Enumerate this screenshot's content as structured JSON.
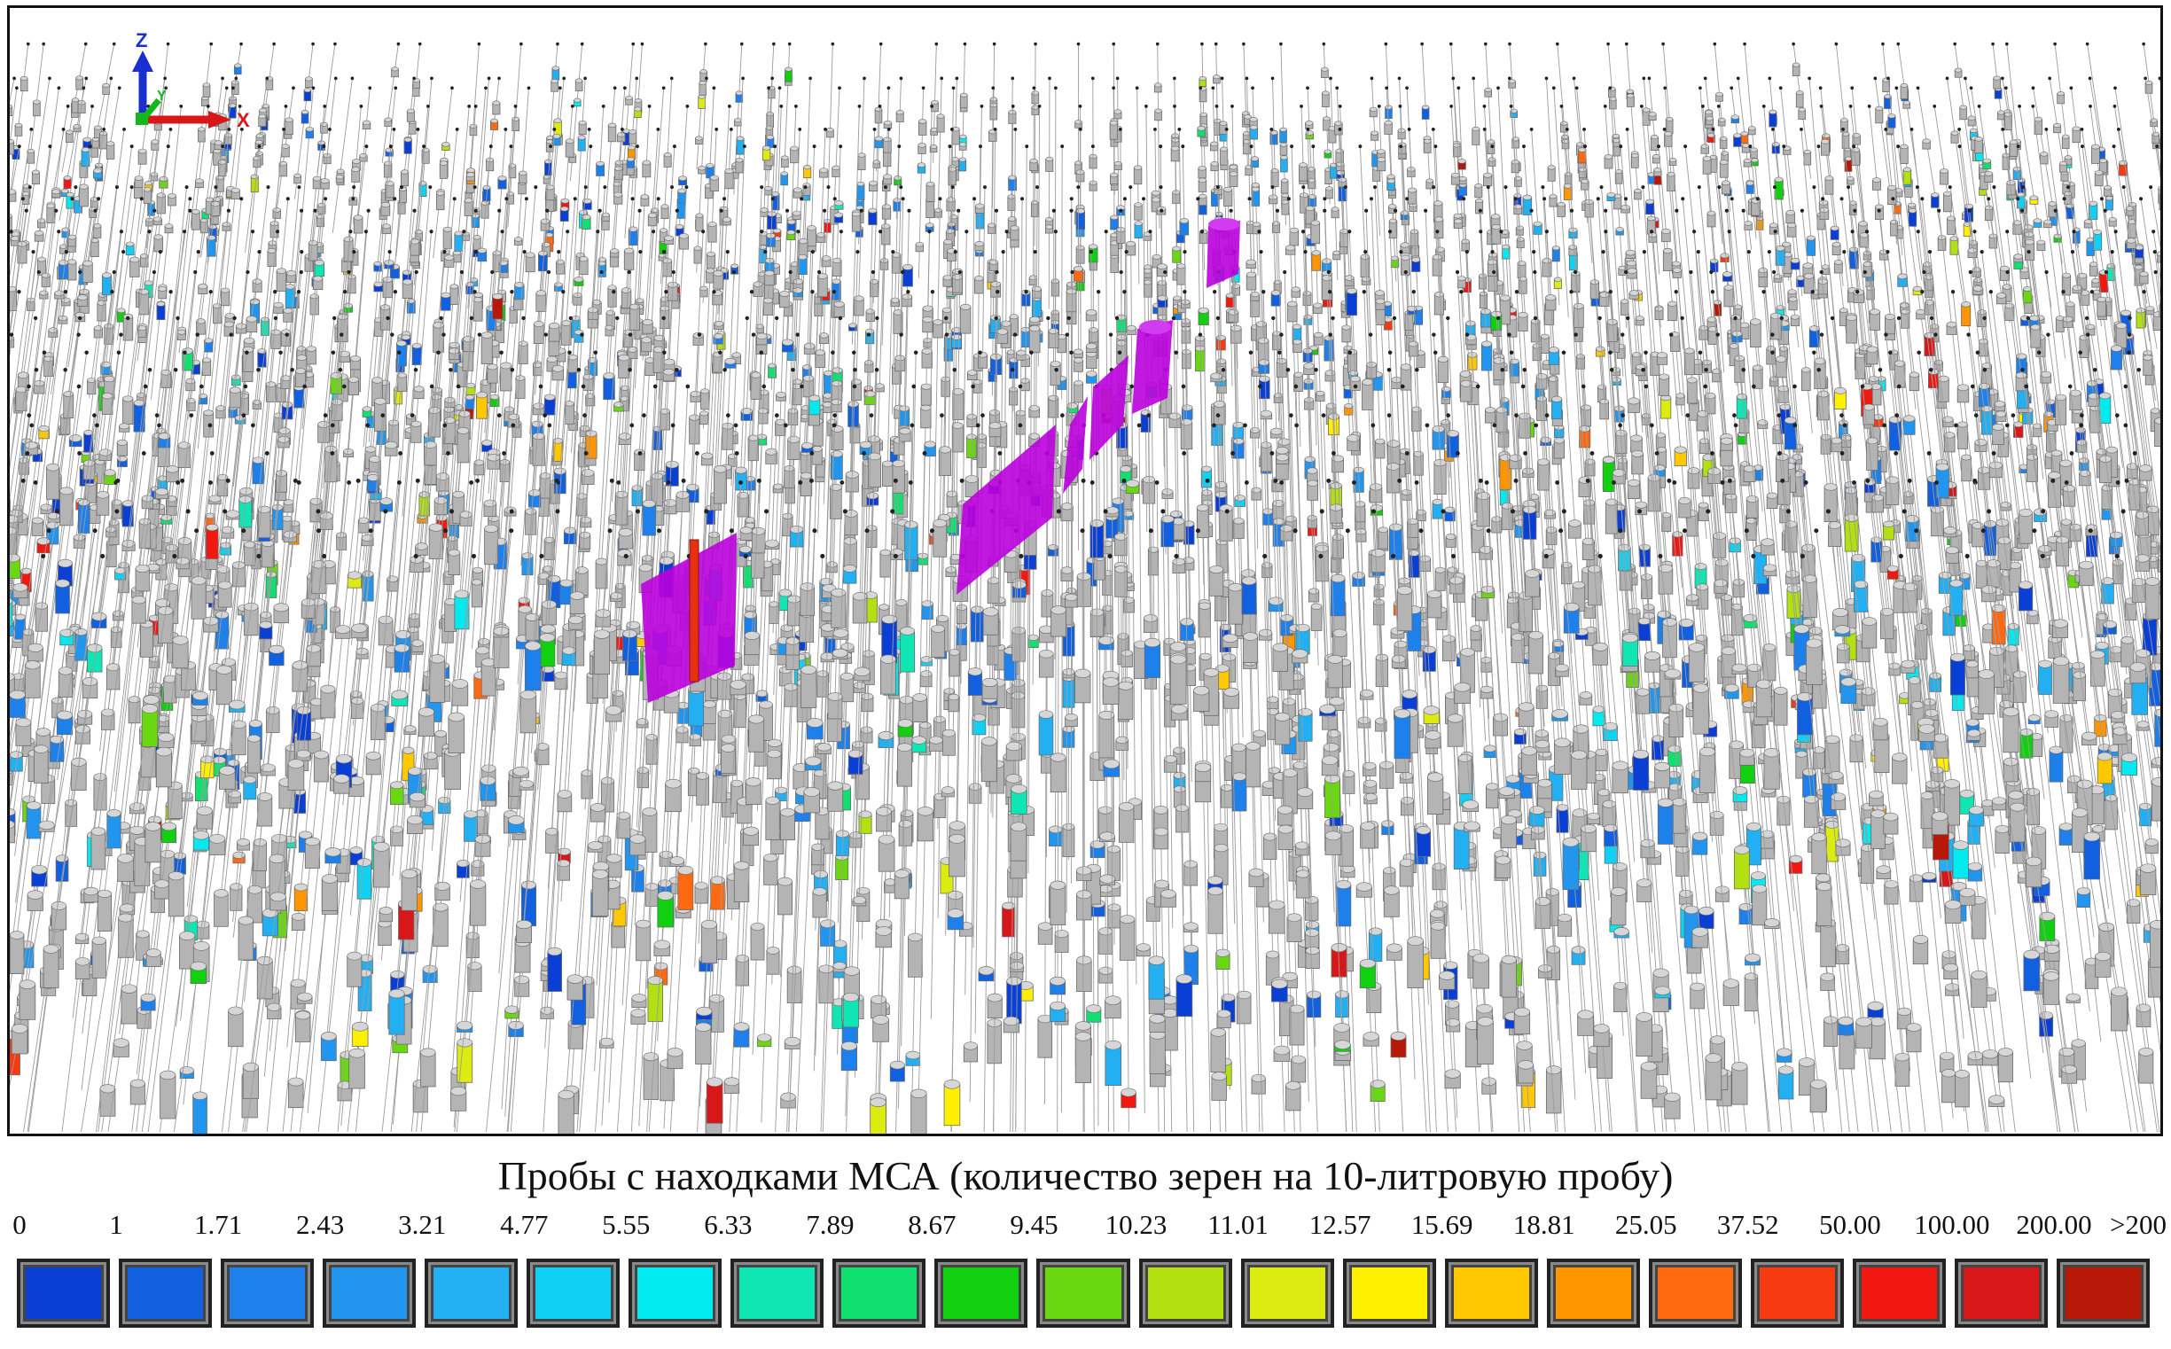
{
  "legend": {
    "title": "Пробы с находками МСА (количество зерен на 10-литровую пробу)",
    "ticks": [
      "0",
      "1",
      "1.71",
      "2.43",
      "3.21",
      "4.77",
      "5.55",
      "6.33",
      "7.89",
      "8.67",
      "9.45",
      "10.23",
      "11.01",
      "12.57",
      "15.69",
      "18.81",
      "25.05",
      "37.52",
      "50.00",
      "100.00",
      "200.00",
      ">200"
    ],
    "colors": [
      "#0a3fd6",
      "#1060e0",
      "#1e80ea",
      "#2296ee",
      "#22b0f2",
      "#10d0f4",
      "#00eaf0",
      "#10e6b4",
      "#10e070",
      "#10d010",
      "#6ad810",
      "#b2e010",
      "#dcec10",
      "#fff000",
      "#ffc800",
      "#ff9600",
      "#ff6a10",
      "#f83a10",
      "#f01810",
      "#d81818",
      "#b81808"
    ]
  },
  "axes": {
    "z_label": "Z",
    "x_label": "X",
    "y_label": "Y",
    "z_color": "#1a2fd0",
    "x_color": "#d81818",
    "y_color": "#10b818"
  },
  "scene": {
    "colors": {
      "hole": "#9c9c9c",
      "sample": "#b4b4b4",
      "zone": "#bb00dd"
    }
  }
}
